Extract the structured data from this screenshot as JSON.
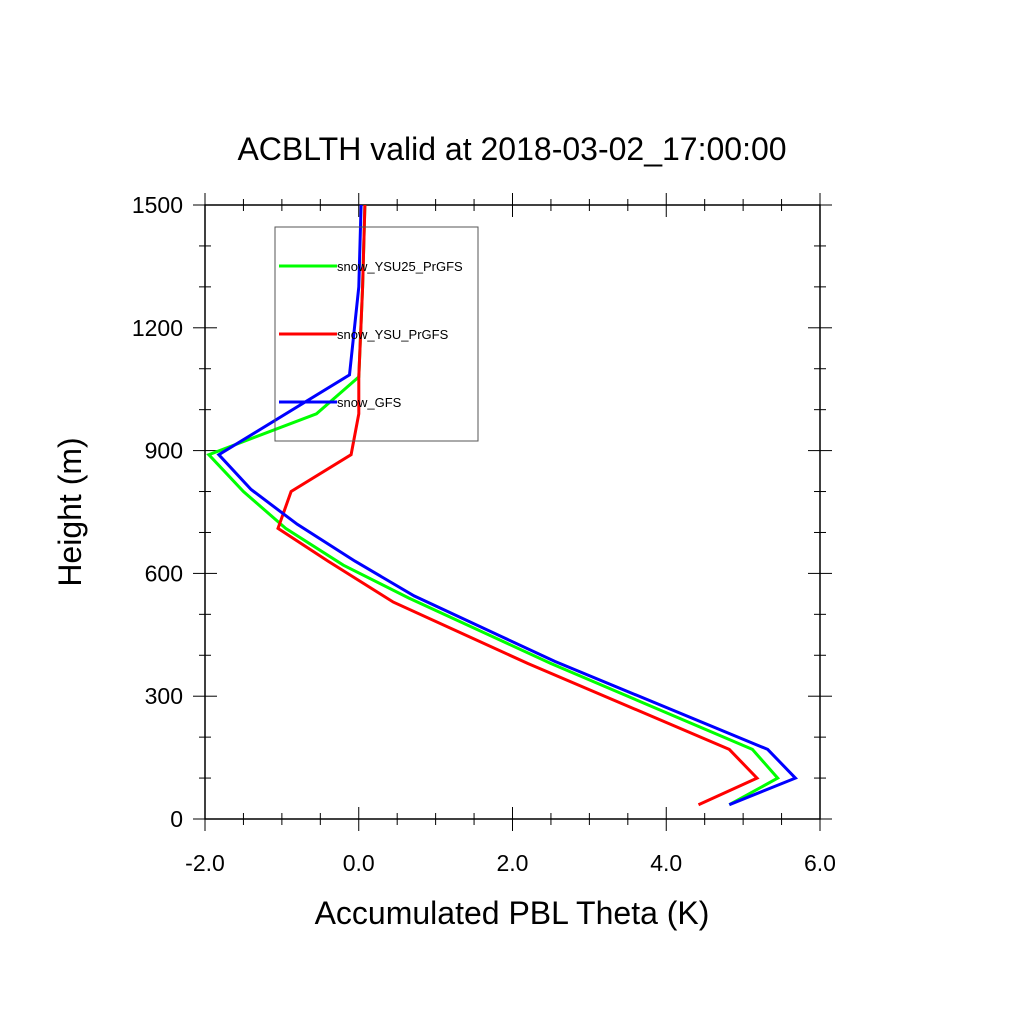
{
  "chart_data": {
    "type": "line",
    "title": "ACBLTH valid at 2018-03-02_17:00:00",
    "xlabel": "Accumulated PBL Theta (K)",
    "ylabel": "Height (m)",
    "xlim": [
      -2.0,
      6.0
    ],
    "ylim": [
      0,
      1500
    ],
    "xticks": [
      -2.0,
      0.0,
      2.0,
      4.0,
      6.0
    ],
    "xtick_labels": [
      "-2.0",
      "0.0",
      "2.0",
      "4.0",
      "6.0"
    ],
    "yticks": [
      0,
      300,
      600,
      900,
      1200,
      1500
    ],
    "ytick_labels": [
      "0",
      "300",
      "600",
      "900",
      "1200",
      "1500"
    ],
    "grid": false,
    "legend_position": "top-left",
    "series": [
      {
        "name": "snow_YSU25_PrGFS",
        "color": "#00ff00",
        "points": [
          [
            4.82,
            35
          ],
          [
            5.45,
            100
          ],
          [
            5.12,
            170
          ],
          [
            2.5,
            380
          ],
          [
            0.65,
            540
          ],
          [
            -0.2,
            620
          ],
          [
            -0.95,
            710
          ],
          [
            -1.5,
            800
          ],
          [
            -1.95,
            890
          ],
          [
            -0.55,
            990
          ],
          [
            0.0,
            1080
          ],
          [
            0.05,
            1300
          ],
          [
            0.08,
            1500
          ]
        ]
      },
      {
        "name": "snow_YSU_PrGFS",
        "color": "#ff0000",
        "points": [
          [
            4.42,
            35
          ],
          [
            5.18,
            100
          ],
          [
            4.82,
            170
          ],
          [
            2.2,
            380
          ],
          [
            0.45,
            530
          ],
          [
            -0.4,
            630
          ],
          [
            -1.05,
            710
          ],
          [
            -0.88,
            800
          ],
          [
            -0.1,
            890
          ],
          [
            0.0,
            990
          ],
          [
            0.0,
            1080
          ],
          [
            0.05,
            1300
          ],
          [
            0.08,
            1500
          ]
        ]
      },
      {
        "name": "snow_GFS",
        "color": "#0000ff",
        "points": [
          [
            4.82,
            35
          ],
          [
            5.68,
            100
          ],
          [
            5.32,
            170
          ],
          [
            2.55,
            385
          ],
          [
            0.72,
            545
          ],
          [
            -0.05,
            630
          ],
          [
            -0.8,
            720
          ],
          [
            -1.4,
            805
          ],
          [
            -1.82,
            890
          ],
          [
            -0.12,
            1085
          ],
          [
            0.0,
            1300
          ],
          [
            0.03,
            1500
          ]
        ]
      }
    ]
  }
}
